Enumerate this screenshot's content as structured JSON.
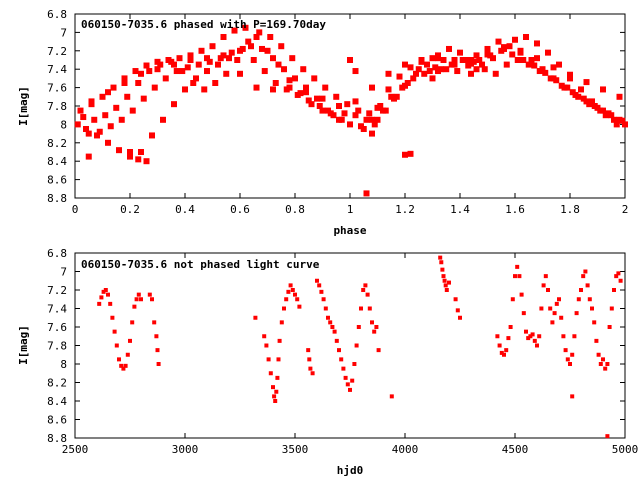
{
  "charts": [
    {
      "type": "scatter",
      "title": "060150-7035.6 phased with P=169.70day",
      "xlabel": "phase",
      "ylabel": "I[mag]",
      "xlim": [
        0,
        2
      ],
      "ylim": [
        6.8,
        8.8
      ],
      "y_inverted": true,
      "xticks": [
        0,
        0.2,
        0.4,
        0.6,
        0.8,
        1,
        1.2,
        1.4,
        1.6,
        1.8,
        2
      ],
      "xtick_labels": [
        "0",
        "0.2",
        "0.4",
        "0.6",
        "0.8",
        "1",
        "1.2",
        "1.4",
        "1.6",
        "1.8",
        "2"
      ],
      "yticks": [
        6.8,
        7,
        7.2,
        7.4,
        7.6,
        7.8,
        8,
        8.2,
        8.4,
        8.6,
        8.8
      ],
      "ytick_labels": [
        "6.8",
        "7",
        "7.2",
        "7.4",
        "7.6",
        "7.8",
        "8",
        "8.2",
        "8.4",
        "8.6",
        "8.8"
      ],
      "marker_color": "#ff0000",
      "series": [
        {
          "x": [
            0.02,
            0.06,
            0.1,
            0.14,
            0.18,
            0.22,
            0.26,
            0.3,
            0.34,
            0.38,
            0.42,
            0.46,
            0.5,
            0.54,
            0.58,
            0.62,
            0.66,
            0.7,
            0.74,
            0.78,
            0.82,
            0.86,
            0.9,
            0.94,
            0.98,
            1.02,
            1.06,
            1.1,
            1.14,
            1.18,
            1.22,
            1.26,
            1.3,
            1.34,
            1.38,
            1.42,
            1.46,
            1.5,
            1.54,
            1.58,
            1.62,
            1.66,
            1.7,
            1.74,
            1.78,
            1.82,
            1.86,
            1.9,
            1.94,
            1.98
          ],
          "y": [
            7.85,
            7.78,
            7.7,
            7.6,
            7.5,
            7.42,
            7.36,
            7.32,
            7.3,
            7.28,
            7.25,
            7.2,
            7.15,
            7.05,
            6.98,
            6.95,
            7.05,
            7.2,
            7.35,
            7.52,
            7.66,
            7.78,
            7.85,
            7.9,
            7.88,
            7.9,
            7.95,
            7.82,
            7.62,
            7.48,
            7.38,
            7.32,
            7.28,
            7.3,
            7.35,
            7.3,
            7.25,
            7.18,
            7.1,
            7.15,
            7.22,
            7.3,
            7.4,
            7.5,
            7.6,
            7.68,
            7.75,
            7.82,
            7.88,
            7.95
          ]
        },
        {
          "x": [
            0.01,
            0.04,
            0.08,
            0.12,
            0.16,
            0.2,
            0.24,
            0.28,
            0.32,
            0.36,
            0.4,
            0.44,
            0.48,
            0.52,
            0.56,
            0.6,
            0.64,
            0.68,
            0.72,
            0.76,
            0.8,
            0.84,
            0.88,
            0.92,
            0.96,
            1.0,
            1.04,
            1.08,
            1.12,
            1.16,
            1.2,
            1.24,
            1.28,
            1.32,
            1.36,
            1.4,
            1.44,
            1.48,
            1.52,
            1.56,
            1.6,
            1.64,
            1.68,
            1.72,
            1.76,
            1.8,
            1.84,
            1.88,
            1.92,
            1.96,
            2.0
          ],
          "y": [
            8.0,
            8.05,
            8.12,
            8.2,
            8.28,
            8.35,
            8.3,
            8.12,
            7.95,
            7.78,
            7.62,
            7.5,
            7.42,
            7.35,
            7.28,
            7.2,
            7.15,
            7.18,
            7.28,
            7.4,
            7.5,
            7.6,
            7.72,
            7.85,
            7.95,
            8.0,
            8.02,
            7.95,
            7.85,
            7.72,
            7.58,
            7.45,
            7.35,
            7.25,
            7.18,
            7.22,
            7.3,
            7.35,
            7.28,
            7.18,
            7.08,
            7.05,
            7.12,
            7.22,
            7.35,
            7.5,
            7.62,
            7.75,
            7.85,
            7.95,
            8.0
          ]
        },
        {
          "x": [
            0.05,
            0.09,
            0.13,
            0.17,
            0.21,
            0.25,
            0.29,
            0.33,
            0.37,
            0.41,
            0.45,
            0.49,
            0.53,
            0.57,
            0.61,
            0.65,
            0.69,
            0.73,
            0.77,
            0.81,
            0.85,
            0.89,
            0.93,
            0.97,
            1.05,
            1.09,
            1.13,
            1.17,
            1.21,
            1.25,
            1.29,
            1.33,
            1.37,
            1.41,
            1.45,
            1.49,
            1.53,
            1.57,
            1.61,
            1.65,
            1.69,
            1.73,
            1.77,
            1.81,
            1.85,
            1.89,
            1.93,
            1.97
          ],
          "y": [
            8.1,
            8.08,
            8.02,
            7.95,
            7.85,
            7.72,
            7.6,
            7.5,
            7.42,
            7.38,
            7.35,
            7.32,
            7.28,
            7.22,
            7.18,
            7.3,
            7.42,
            7.55,
            7.62,
            7.68,
            7.74,
            7.8,
            7.88,
            7.95,
            8.05,
            8.0,
            7.85,
            7.7,
            7.55,
            7.4,
            7.42,
            7.4,
            7.35,
            7.3,
            7.32,
            7.4,
            7.45,
            7.35,
            7.3,
            7.35,
            7.42,
            7.5,
            7.58,
            7.65,
            7.72,
            7.8,
            7.9,
            8.0
          ]
        },
        {
          "x": [
            0.03,
            0.07,
            0.11,
            0.15,
            0.19,
            0.23,
            0.27,
            0.31,
            0.35,
            0.39,
            0.43,
            0.47,
            0.51,
            0.55,
            0.59,
            0.63,
            0.67,
            0.71,
            0.75,
            0.79,
            0.83,
            0.87,
            0.91,
            0.95,
            0.99,
            1.03,
            1.07,
            1.11,
            1.15,
            1.19,
            1.23,
            1.27,
            1.31,
            1.35,
            1.39,
            1.43,
            1.47,
            1.51,
            1.55,
            1.59,
            1.63,
            1.67,
            1.71,
            1.75,
            1.79,
            1.83,
            1.87,
            1.91,
            1.95,
            1.99
          ],
          "y": [
            7.92,
            7.95,
            7.9,
            7.82,
            7.7,
            7.55,
            7.42,
            7.35,
            7.32,
            7.42,
            7.55,
            7.62,
            7.55,
            7.45,
            7.3,
            7.1,
            7.0,
            7.05,
            7.15,
            7.28,
            7.4,
            7.5,
            7.6,
            7.7,
            7.78,
            7.85,
            7.88,
            7.8,
            7.7,
            7.6,
            7.5,
            7.45,
            7.38,
            7.4,
            7.42,
            7.36,
            7.3,
            7.25,
            7.2,
            7.24,
            7.3,
            7.36,
            7.44,
            7.52,
            7.6,
            7.7,
            7.78,
            7.85,
            7.9,
            7.96
          ]
        },
        {
          "x": [
            0.06,
            0.12,
            0.18,
            0.24,
            0.3,
            0.36,
            0.42,
            0.48,
            0.54,
            0.6,
            0.66,
            0.72,
            0.78,
            0.84,
            0.9,
            0.96,
            1.02,
            1.08,
            1.14,
            1.2,
            1.26,
            1.32,
            1.38,
            1.44,
            1.5,
            1.56,
            1.62,
            1.68,
            1.74,
            1.8,
            1.86,
            1.92,
            1.98
          ],
          "y": [
            7.75,
            7.65,
            7.55,
            7.45,
            7.4,
            7.35,
            7.3,
            7.28,
            7.25,
            7.45,
            7.6,
            7.62,
            7.6,
            7.65,
            7.72,
            7.8,
            7.75,
            7.6,
            7.45,
            7.35,
            7.3,
            7.28,
            7.3,
            7.34,
            7.24,
            7.16,
            7.2,
            7.28,
            7.38,
            7.46,
            7.54,
            7.62,
            7.7
          ]
        },
        {
          "x": [
            0.05,
            0.2,
            0.23,
            0.26,
            1.0,
            1.02,
            1.06,
            1.08,
            1.1,
            1.2,
            1.22,
            1.3,
            1.32,
            1.44,
            1.46
          ],
          "y": [
            8.35,
            8.3,
            8.38,
            8.4,
            7.3,
            7.42,
            8.75,
            8.1,
            7.95,
            8.33,
            8.32,
            7.5,
            7.42,
            7.45,
            7.4
          ]
        }
      ]
    },
    {
      "type": "scatter",
      "title": "060150-7035.6 not phased light curve",
      "xlabel": "hjd0",
      "ylabel": "I[mag]",
      "xlim": [
        2500,
        5000
      ],
      "ylim": [
        6.8,
        8.8
      ],
      "y_inverted": true,
      "xticks": [
        2500,
        3000,
        3500,
        4000,
        4500,
        5000
      ],
      "xtick_labels": [
        "2500",
        "3000",
        "3500",
        "4000",
        "4500",
        "5000"
      ],
      "yticks": [
        6.8,
        7,
        7.2,
        7.4,
        7.6,
        7.8,
        8,
        8.2,
        8.4,
        8.6,
        8.8
      ],
      "ytick_labels": [
        "6.8",
        "7",
        "7.2",
        "7.4",
        "7.6",
        "7.8",
        "8",
        "8.2",
        "8.4",
        "8.6",
        "8.8"
      ],
      "marker_color": "#ff0000",
      "series": [
        {
          "x": [
            2610,
            2620,
            2630,
            2640,
            2650,
            2660,
            2670,
            2680,
            2690,
            2700,
            2710,
            2720,
            2730,
            2740,
            2750,
            2760,
            2770,
            2780,
            2790,
            2800,
            2840,
            2850,
            2860,
            2870,
            2875,
            2880
          ],
          "y": [
            7.35,
            7.28,
            7.22,
            7.2,
            7.25,
            7.35,
            7.5,
            7.65,
            7.8,
            7.95,
            8.02,
            8.05,
            8.02,
            7.9,
            7.75,
            7.55,
            7.38,
            7.3,
            7.25,
            7.3,
            7.25,
            7.3,
            7.55,
            7.7,
            7.85,
            8.0
          ]
        },
        {
          "x": [
            3320,
            3360,
            3370,
            3380,
            3390,
            3400,
            3405,
            3410,
            3415,
            3420,
            3425,
            3430,
            3440,
            3450,
            3460,
            3470,
            3480,
            3490,
            3500,
            3510,
            3520,
            3560,
            3565,
            3570,
            3580
          ],
          "y": [
            7.5,
            7.7,
            7.8,
            7.95,
            8.1,
            8.25,
            8.35,
            8.4,
            8.3,
            8.15,
            7.95,
            7.75,
            7.55,
            7.4,
            7.3,
            7.22,
            7.15,
            7.2,
            7.25,
            7.3,
            7.38,
            7.85,
            7.95,
            8.05,
            8.1
          ]
        },
        {
          "x": [
            3600,
            3610,
            3620,
            3630,
            3640,
            3650,
            3660,
            3670,
            3680,
            3690,
            3700,
            3710,
            3720,
            3730,
            3740,
            3750,
            3760,
            3770,
            3780,
            3790,
            3800,
            3810,
            3820,
            3830,
            3840,
            3850,
            3860,
            3870,
            3880,
            3940
          ],
          "y": [
            7.1,
            7.15,
            7.22,
            7.3,
            7.4,
            7.5,
            7.55,
            7.6,
            7.65,
            7.75,
            7.85,
            7.95,
            8.05,
            8.15,
            8.22,
            8.28,
            8.18,
            8.0,
            7.8,
            7.6,
            7.4,
            7.2,
            7.15,
            7.25,
            7.4,
            7.55,
            7.65,
            7.6,
            7.85,
            8.35
          ]
        },
        {
          "x": [
            4160,
            4165,
            4170,
            4175,
            4180,
            4185,
            4190,
            4200,
            4230,
            4240,
            4250
          ],
          "y": [
            6.85,
            6.9,
            6.98,
            7.05,
            7.1,
            7.15,
            7.2,
            7.12,
            7.3,
            7.42,
            7.5
          ]
        },
        {
          "x": [
            4420,
            4430,
            4440,
            4450,
            4460,
            4470,
            4480,
            4490,
            4500,
            4510,
            4520,
            4530,
            4540,
            4550,
            4560,
            4570,
            4580,
            4590,
            4600,
            4610,
            4620,
            4630,
            4640,
            4650,
            4660,
            4670,
            4680,
            4690,
            4700,
            4710,
            4720,
            4730,
            4740,
            4750,
            4760,
            4770,
            4780,
            4790,
            4800,
            4810,
            4820,
            4830,
            4840,
            4850,
            4860,
            4870,
            4880,
            4890,
            4900,
            4910,
            4920,
            4930,
            4940,
            4950,
            4960,
            4970,
            4980
          ],
          "y": [
            7.7,
            7.8,
            7.88,
            7.9,
            7.85,
            7.72,
            7.6,
            7.3,
            7.05,
            6.95,
            7.05,
            7.25,
            7.45,
            7.65,
            7.72,
            7.7,
            7.68,
            7.75,
            7.8,
            7.7,
            7.4,
            7.15,
            7.05,
            7.2,
            7.4,
            7.55,
            7.45,
            7.35,
            7.3,
            7.5,
            7.7,
            7.85,
            7.95,
            8.0,
            7.9,
            7.7,
            7.45,
            7.3,
            7.2,
            7.05,
            7.0,
            7.15,
            7.3,
            7.4,
            7.55,
            7.75,
            7.9,
            8.0,
            7.95,
            8.05,
            8.0,
            7.6,
            7.4,
            7.2,
            7.05,
            7.02,
            7.1
          ]
        },
        {
          "x": [
            4760,
            4920
          ],
          "y": [
            8.35,
            8.78
          ]
        }
      ]
    }
  ]
}
